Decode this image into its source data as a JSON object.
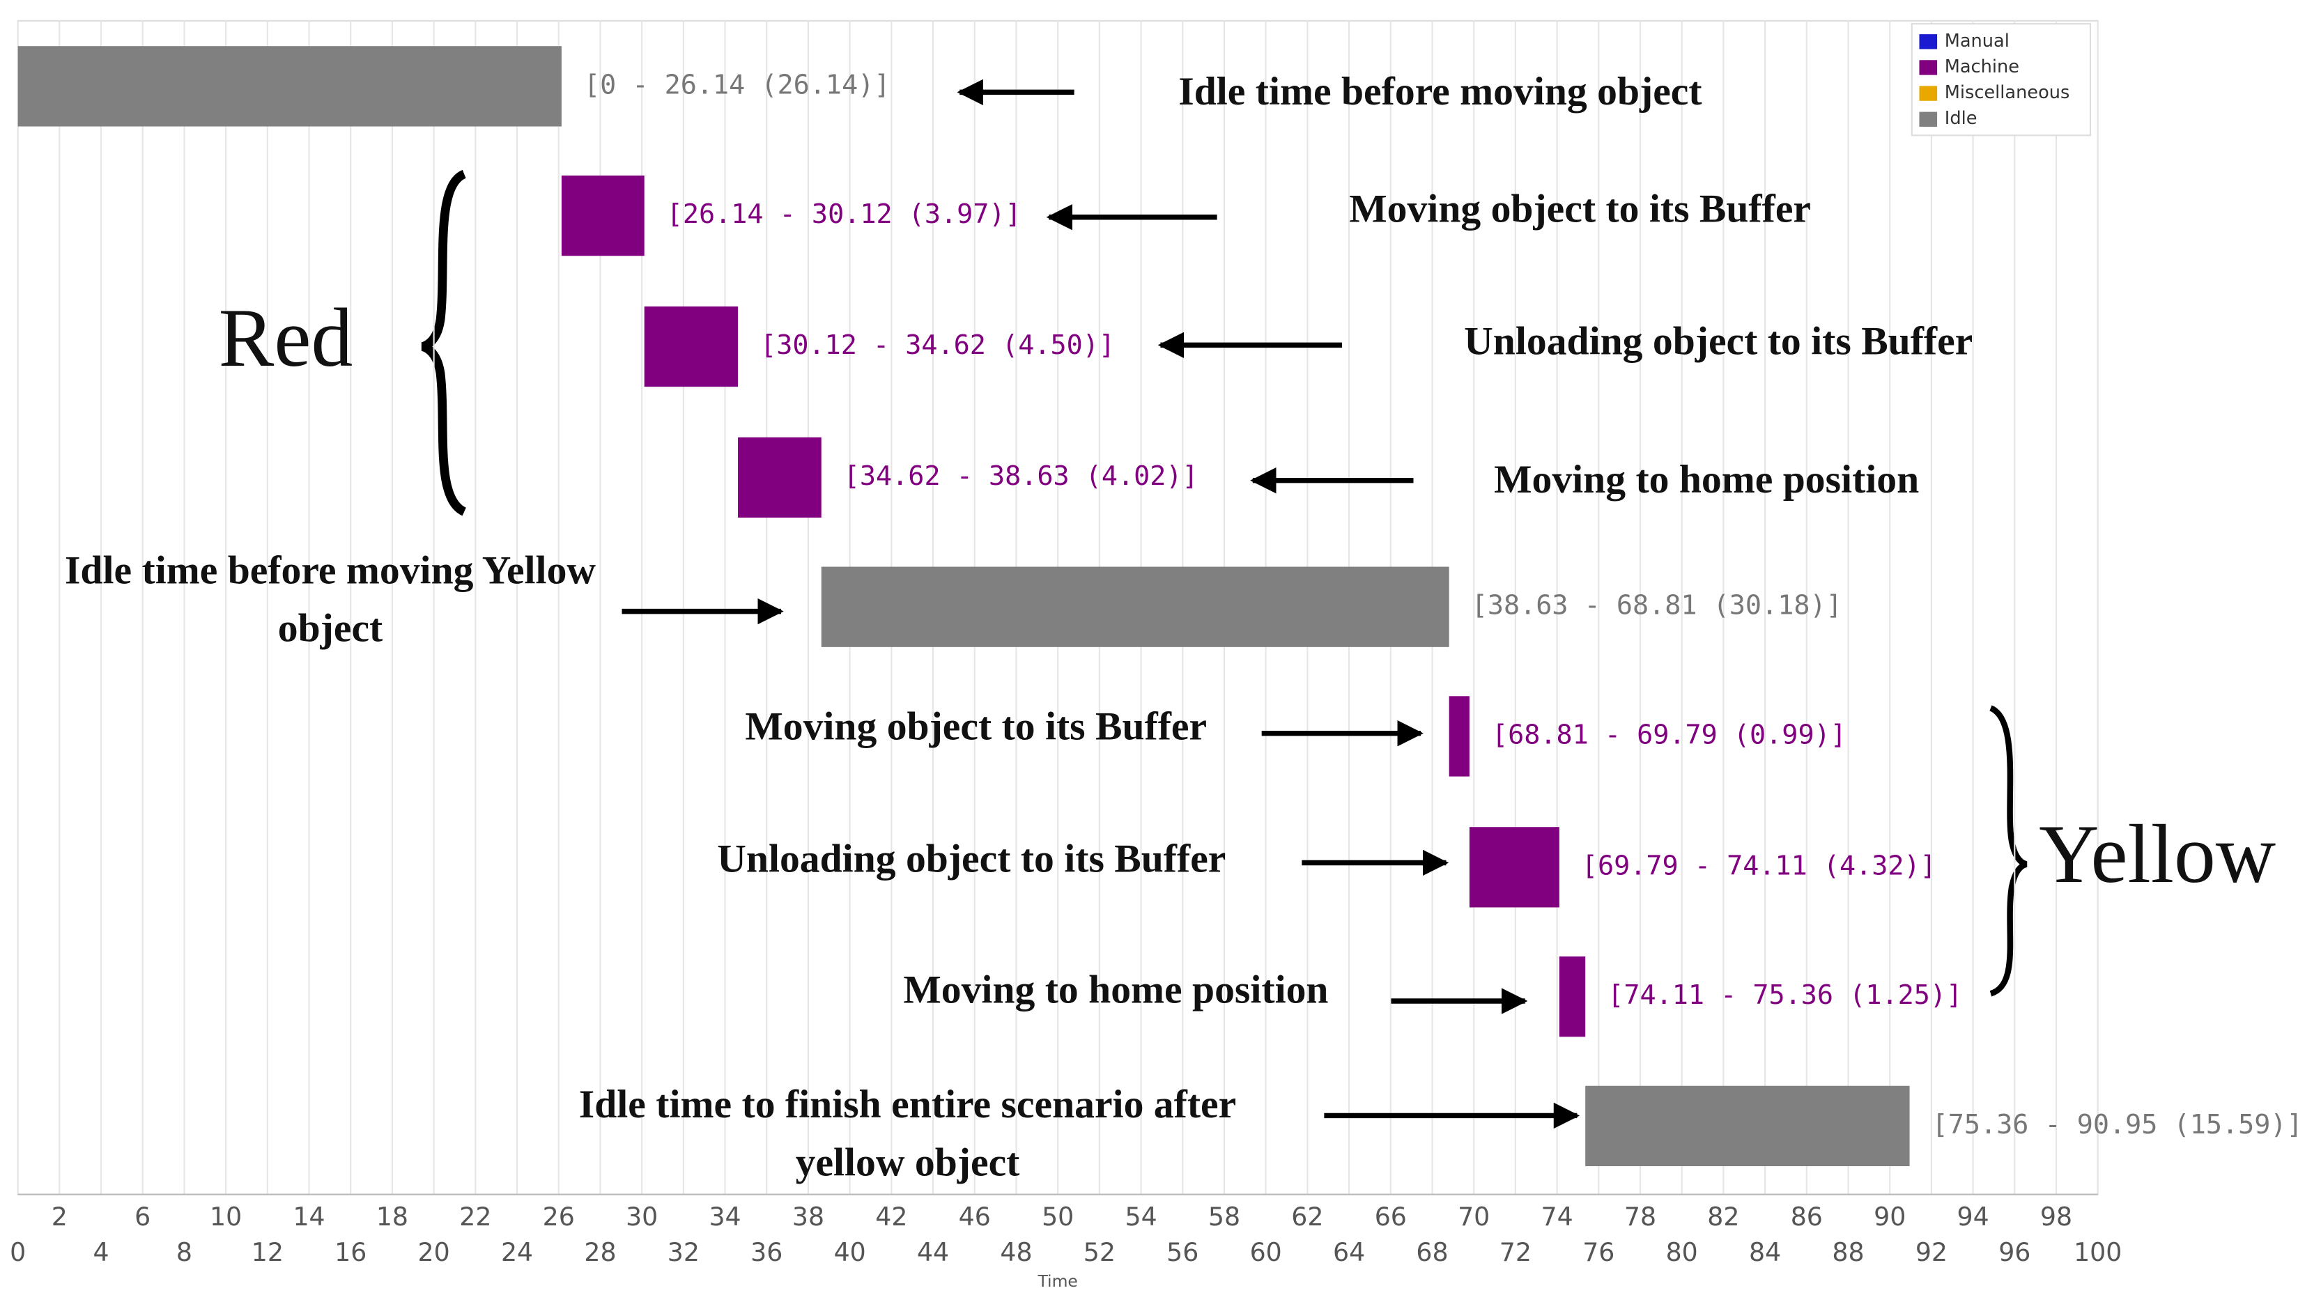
{
  "chart_data": {
    "type": "gantt",
    "x_label": "Time",
    "xlim": [
      0,
      100
    ],
    "xticks": [
      0,
      2,
      4,
      6,
      8,
      10,
      12,
      14,
      16,
      18,
      20,
      22,
      24,
      26,
      28,
      30,
      32,
      34,
      36,
      38,
      40,
      42,
      44,
      46,
      48,
      50,
      52,
      54,
      56,
      58,
      60,
      62,
      64,
      66,
      68,
      70,
      72,
      74,
      76,
      78,
      80,
      82,
      84,
      86,
      88,
      90,
      92,
      94,
      96,
      98,
      100
    ],
    "grid": true,
    "legend_position": "upper right",
    "legend": [
      {
        "name": "Manual",
        "color": "#1a1ad0"
      },
      {
        "name": "Machine",
        "color": "#800080"
      },
      {
        "name": "Miscellaneous",
        "color": "#e8a800"
      },
      {
        "name": "Idle",
        "color": "#808080"
      }
    ],
    "tasks": [
      {
        "category": "Idle",
        "start": 0,
        "end": 26.14,
        "duration": 26.14,
        "label": "[0 - 26.14 (26.14)]"
      },
      {
        "category": "Machine",
        "start": 26.14,
        "end": 30.12,
        "duration": 3.97,
        "label": "[26.14 - 30.12 (3.97)]"
      },
      {
        "category": "Machine",
        "start": 30.12,
        "end": 34.62,
        "duration": 4.5,
        "label": "[30.12 - 34.62 (4.50)]"
      },
      {
        "category": "Machine",
        "start": 34.62,
        "end": 38.63,
        "duration": 4.02,
        "label": "[34.62 - 38.63 (4.02)]"
      },
      {
        "category": "Idle",
        "start": 38.63,
        "end": 68.81,
        "duration": 30.18,
        "label": "[38.63 - 68.81 (30.18)]"
      },
      {
        "category": "Machine",
        "start": 68.81,
        "end": 69.79,
        "duration": 0.99,
        "label": "[68.81 - 69.79 (0.99)]"
      },
      {
        "category": "Machine",
        "start": 69.79,
        "end": 74.11,
        "duration": 4.32,
        "label": "[69.79 - 74.11 (4.32)]"
      },
      {
        "category": "Machine",
        "start": 74.11,
        "end": 75.36,
        "duration": 1.25,
        "label": "[74.11 - 75.36 (1.25)]"
      },
      {
        "category": "Idle",
        "start": 75.36,
        "end": 90.95,
        "duration": 15.59,
        "label": "[75.36 - 90.95 (15.59)]"
      }
    ],
    "annotations": [
      {
        "lines": [
          "Idle time before moving object"
        ]
      },
      {
        "lines": [
          "Moving object to its Buffer"
        ]
      },
      {
        "lines": [
          "Unloading object to its Buffer"
        ]
      },
      {
        "lines": [
          "Moving to home position"
        ]
      },
      {
        "lines": [
          "Idle time before moving Yellow",
          "object"
        ]
      },
      {
        "lines": [
          "Moving object to its Buffer"
        ]
      },
      {
        "lines": [
          "Unloading object to its Buffer"
        ]
      },
      {
        "lines": [
          "Moving to home position"
        ]
      },
      {
        "lines": [
          "Idle time to finish entire scenario after",
          "yellow object"
        ]
      }
    ],
    "groups": [
      "Red",
      "Yellow"
    ]
  }
}
